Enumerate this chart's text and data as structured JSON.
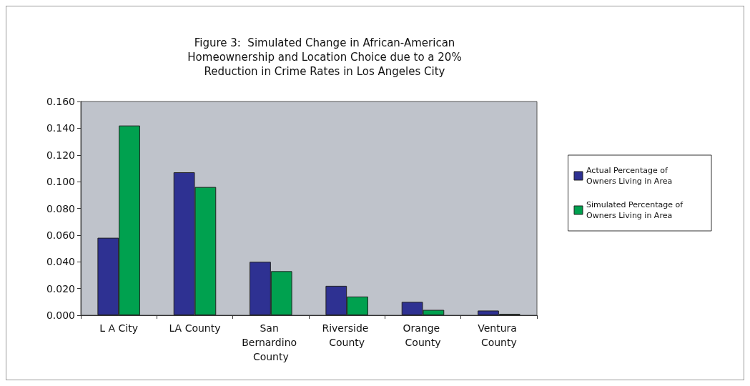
{
  "chart_data": {
    "type": "bar",
    "title": "Figure 3:  Simulated Change in African-American\nHomeownership and Location Choice due to a 20%\nReduction in Crime Rates in Los Angeles City",
    "categories": [
      "L A City",
      "LA County",
      "San Bernardino County",
      "Riverside County",
      "Orange County",
      "Ventura County"
    ],
    "series": [
      {
        "name": "Actual Percentage of Owners Living in Area",
        "color": "#2e3192",
        "values": [
          0.058,
          0.107,
          0.04,
          0.022,
          0.01,
          0.0035
        ]
      },
      {
        "name": "Simulated Percentage of Owners Living in Area",
        "color": "#00a14f",
        "values": [
          0.142,
          0.096,
          0.033,
          0.014,
          0.004,
          0.001
        ]
      }
    ],
    "ylim": [
      0,
      0.16
    ],
    "yticks": [
      {
        "value": 0,
        "label": "0.000"
      },
      {
        "value": 0.02,
        "label": "0.020"
      },
      {
        "value": 0.04,
        "label": "0.040"
      },
      {
        "value": 0.06,
        "label": "0.060"
      },
      {
        "value": 0.08,
        "label": "0.080"
      },
      {
        "value": 0.1,
        "label": "0.100"
      },
      {
        "value": 0.12,
        "label": "0.120"
      },
      {
        "value": 0.14,
        "label": "0.140"
      },
      {
        "value": 0.16,
        "label": "0.160"
      }
    ],
    "grid": false,
    "legend": "right"
  }
}
